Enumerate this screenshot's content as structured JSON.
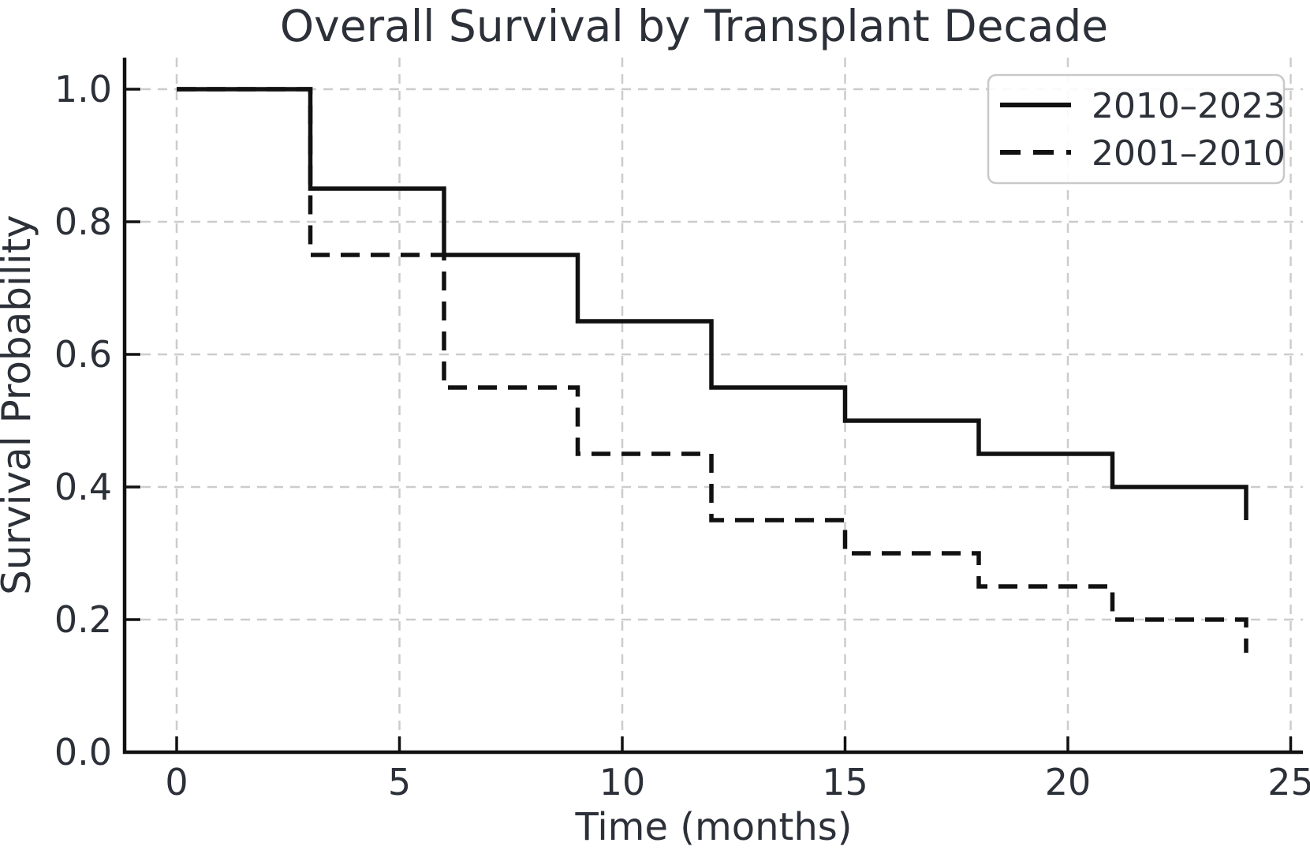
{
  "colors": {
    "line": "#111111",
    "text": "#2c3038",
    "grid": "#cccccc",
    "legend_border": "#c9c9c9",
    "background": "#ffffff"
  },
  "chart_data": {
    "type": "line",
    "subtype": "kaplan_meier_step",
    "title": "Overall Survival by Transplant Decade",
    "xlabel": "Time (months)",
    "ylabel": "Survival Probability",
    "x_ticks": [
      0,
      5,
      10,
      15,
      20,
      25
    ],
    "y_ticks": [
      0.0,
      0.2,
      0.4,
      0.6,
      0.8,
      1.0
    ],
    "xlim": [
      0,
      25
    ],
    "ylim": [
      0.0,
      1.0
    ],
    "grid": true,
    "grid_style": "dashed",
    "legend_position": "upper right",
    "series": [
      {
        "name": "2010–2023",
        "line_style": "solid",
        "color": "#111111",
        "times": [
          0,
          3,
          6,
          9,
          12,
          15,
          18,
          21,
          24
        ],
        "survival": [
          1.0,
          0.85,
          0.75,
          0.65,
          0.55,
          0.5,
          0.45,
          0.4,
          0.35
        ]
      },
      {
        "name": "2001–2010",
        "line_style": "dashed",
        "color": "#111111",
        "times": [
          0,
          3,
          6,
          9,
          12,
          15,
          18,
          21,
          24
        ],
        "survival": [
          1.0,
          0.75,
          0.55,
          0.45,
          0.35,
          0.3,
          0.25,
          0.2,
          0.15
        ]
      }
    ]
  }
}
